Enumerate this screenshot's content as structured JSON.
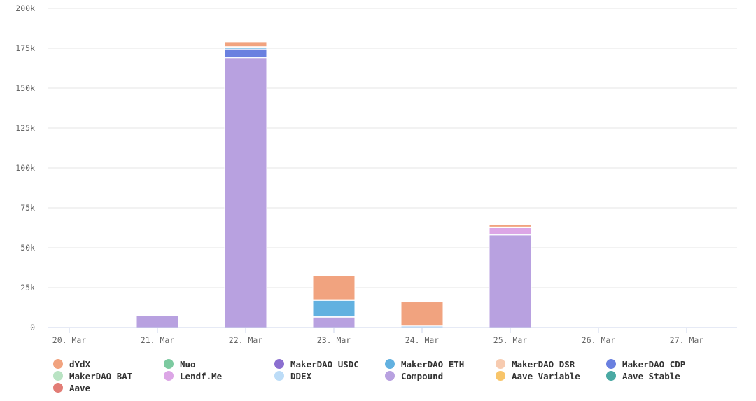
{
  "chart_data": {
    "type": "bar",
    "stacked": true,
    "title": "",
    "xlabel": "",
    "ylabel": "",
    "ylim": [
      0,
      200000
    ],
    "yticks": [
      {
        "value": 0,
        "label": "0"
      },
      {
        "value": 25000,
        "label": "25k"
      },
      {
        "value": 50000,
        "label": "50k"
      },
      {
        "value": 75000,
        "label": "75k"
      },
      {
        "value": 100000,
        "label": "100k"
      },
      {
        "value": 125000,
        "label": "125k"
      },
      {
        "value": 150000,
        "label": "150k"
      },
      {
        "value": 175000,
        "label": "175k"
      },
      {
        "value": 200000,
        "label": "200k"
      }
    ],
    "grid": true,
    "legend": "bottom",
    "categories": [
      "20. Mar",
      "21. Mar",
      "22. Mar",
      "23. Mar",
      "24. Mar",
      "25. Mar",
      "26. Mar",
      "27. Mar"
    ],
    "series": [
      {
        "name": "Compound",
        "color": "#b8a1e0",
        "values": [
          0,
          7500,
          169000,
          6500,
          0,
          58000,
          0,
          0
        ]
      },
      {
        "name": "DDEX",
        "color": "#bcdcf7",
        "values": [
          0,
          0,
          500,
          500,
          1000,
          500,
          0,
          0
        ]
      },
      {
        "name": "Lendf.Me",
        "color": "#dca6e6",
        "values": [
          0,
          0,
          0,
          0,
          0,
          4000,
          0,
          0
        ]
      },
      {
        "name": "MakerDAO CDP",
        "color": "#6a80e0",
        "values": [
          0,
          0,
          5000,
          0,
          0,
          0,
          0,
          0
        ]
      },
      {
        "name": "MakerDAO ETH",
        "color": "#62b1e0",
        "values": [
          0,
          0,
          1000,
          10000,
          0,
          0,
          0,
          0
        ]
      },
      {
        "name": "MakerDAO DSR",
        "color": "#f7cbb0",
        "values": [
          0,
          0,
          500,
          500,
          0,
          500,
          0,
          0
        ]
      },
      {
        "name": "dYdX",
        "color": "#f1a37f",
        "values": [
          0,
          0,
          3000,
          15000,
          15000,
          1500,
          0,
          0
        ]
      },
      {
        "name": "Nuo",
        "color": "#7ccaa0",
        "values": [
          0,
          0,
          0,
          0,
          0,
          0,
          0,
          0
        ]
      },
      {
        "name": "MakerDAO USDC",
        "color": "#8b6fd0",
        "values": [
          0,
          0,
          0,
          0,
          0,
          0,
          0,
          0
        ]
      },
      {
        "name": "MakerDAO BAT",
        "color": "#b9e3c3",
        "values": [
          0,
          0,
          0,
          0,
          0,
          0,
          0,
          0
        ]
      },
      {
        "name": "Aave Variable",
        "color": "#f8c56a",
        "values": [
          0,
          0,
          0,
          0,
          0,
          0,
          0,
          0
        ]
      },
      {
        "name": "Aave Stable",
        "color": "#4aa9a3",
        "values": [
          0,
          0,
          0,
          0,
          0,
          0,
          0,
          0
        ]
      },
      {
        "name": "Aave",
        "color": "#e27d76",
        "values": [
          0,
          0,
          0,
          0,
          0,
          0,
          0,
          0
        ]
      }
    ],
    "legend_items": [
      {
        "name": "dYdX",
        "color": "#f1a37f"
      },
      {
        "name": "Nuo",
        "color": "#7ccaa0"
      },
      {
        "name": "MakerDAO USDC",
        "color": "#8b6fd0"
      },
      {
        "name": "MakerDAO ETH",
        "color": "#62b1e0"
      },
      {
        "name": "MakerDAO DSR",
        "color": "#f7cbb0"
      },
      {
        "name": "MakerDAO CDP",
        "color": "#6a80e0"
      },
      {
        "name": "MakerDAO BAT",
        "color": "#b9e3c3"
      },
      {
        "name": "Lendf.Me",
        "color": "#dca6e6"
      },
      {
        "name": "DDEX",
        "color": "#bcdcf7"
      },
      {
        "name": "Compound",
        "color": "#b8a1e0"
      },
      {
        "name": "Aave Variable",
        "color": "#f8c56a"
      },
      {
        "name": "Aave Stable",
        "color": "#4aa9a3"
      },
      {
        "name": "Aave",
        "color": "#e27d76"
      }
    ]
  }
}
